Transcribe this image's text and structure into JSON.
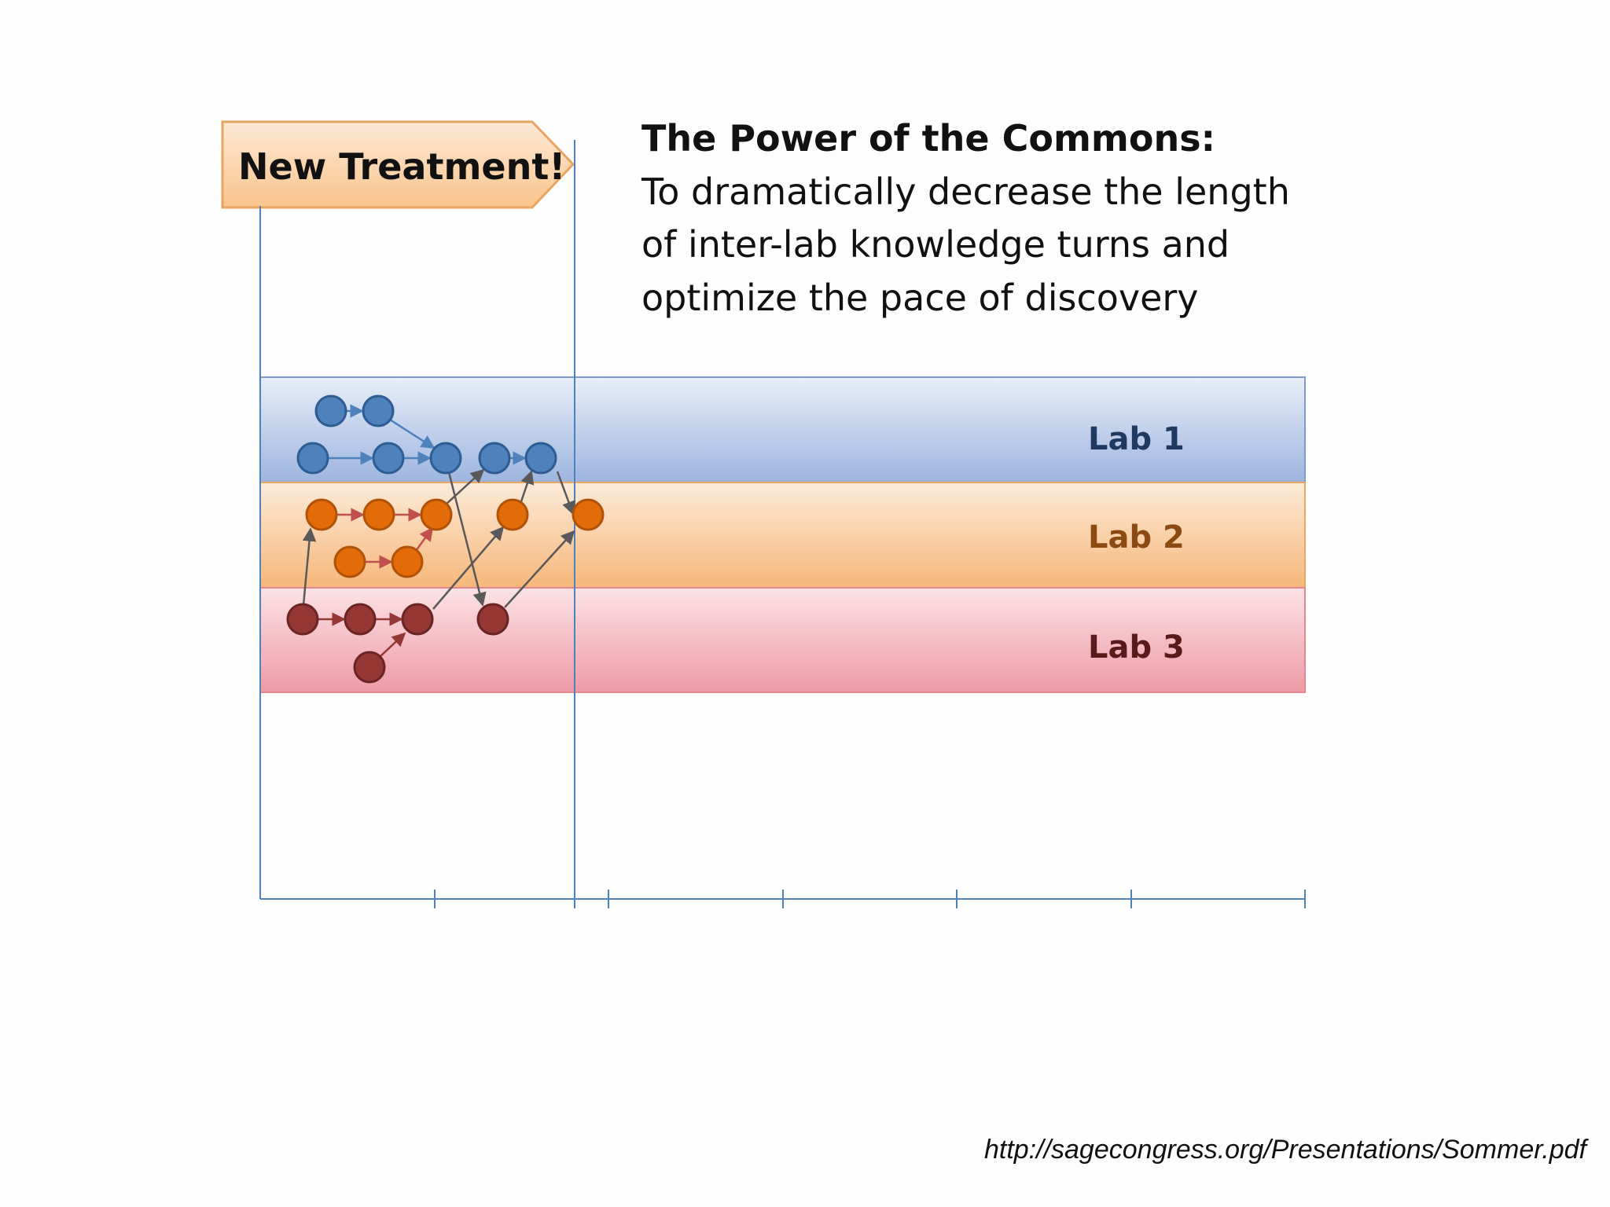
{
  "callout": {
    "label": "New Treatment!"
  },
  "heading": {
    "title": "The Power of the Commons:",
    "lines": [
      "To dramatically decrease the length",
      "of inter-lab knowledge turns and",
      "optimize the pace of discovery"
    ]
  },
  "lanes": [
    {
      "id": "lab1",
      "label": "Lab 1"
    },
    {
      "id": "lab2",
      "label": "Lab 2"
    },
    {
      "id": "lab3",
      "label": "Lab 3"
    }
  ],
  "colors": {
    "lab1_node_fill": "#4f81bd",
    "lab1_node_stroke": "#2f5c92",
    "lab1_text": "#1f3a5f",
    "lab2_node_fill": "#e36c09",
    "lab2_node_stroke": "#b05208",
    "lab2_text": "#8a4a12",
    "lab3_node_fill": "#953735",
    "lab3_node_stroke": "#6b2422",
    "lab3_text": "#5a1a1a",
    "axis": "#4f81bd",
    "intra_arrow_lab1": "#4f81bd",
    "intra_arrow_lab2": "#c0504d",
    "intra_arrow_lab3": "#953735",
    "inter_arrow": "#595959"
  },
  "axis": {
    "tick_count": 6
  },
  "source": {
    "url": "http://sagecongress.org/Presentations/Sommer.pdf"
  }
}
